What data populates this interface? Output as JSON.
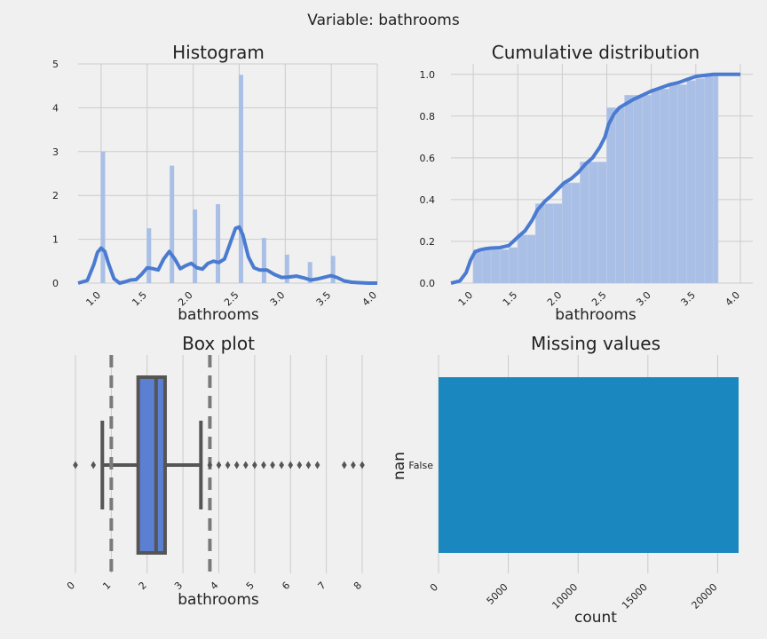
{
  "figure": {
    "suptitle": "Variable: bathrooms"
  },
  "chart_data": [
    {
      "type": "bar",
      "title": "Histogram",
      "xlabel": "bathrooms",
      "ylabel": "",
      "xlim": [
        0.75,
        4.0
      ],
      "ylim": [
        0,
        5
      ],
      "xticks": [
        "1.0",
        "1.5",
        "2.0",
        "2.5",
        "3.0",
        "3.5",
        "4.0"
      ],
      "yticks": [
        "0",
        "1",
        "2",
        "3",
        "4",
        "5"
      ],
      "grid": true,
      "bins": [
        {
          "x": 1.0,
          "value": 3.0
        },
        {
          "x": 1.5,
          "value": 1.25
        },
        {
          "x": 1.75,
          "value": 2.68
        },
        {
          "x": 2.0,
          "value": 1.68
        },
        {
          "x": 2.25,
          "value": 1.8
        },
        {
          "x": 2.5,
          "value": 4.75
        },
        {
          "x": 2.75,
          "value": 1.03
        },
        {
          "x": 3.0,
          "value": 0.65
        },
        {
          "x": 3.25,
          "value": 0.48
        },
        {
          "x": 3.5,
          "value": 0.62
        }
      ],
      "kde": {
        "x": [
          0.75,
          0.85,
          0.92,
          0.96,
          1.0,
          1.04,
          1.08,
          1.14,
          1.2,
          1.26,
          1.32,
          1.38,
          1.44,
          1.5,
          1.56,
          1.62,
          1.68,
          1.74,
          1.8,
          1.86,
          1.92,
          1.98,
          2.04,
          2.1,
          2.16,
          2.22,
          2.28,
          2.34,
          2.4,
          2.46,
          2.5,
          2.54,
          2.6,
          2.66,
          2.72,
          2.8,
          2.88,
          2.96,
          3.04,
          3.12,
          3.2,
          3.28,
          3.36,
          3.44,
          3.5,
          3.56,
          3.64,
          3.72,
          3.8,
          3.9,
          4.0
        ],
        "y": [
          0.0,
          0.06,
          0.42,
          0.7,
          0.8,
          0.72,
          0.45,
          0.1,
          0.0,
          0.03,
          0.07,
          0.08,
          0.2,
          0.35,
          0.33,
          0.3,
          0.55,
          0.72,
          0.55,
          0.33,
          0.4,
          0.45,
          0.35,
          0.32,
          0.45,
          0.5,
          0.47,
          0.55,
          0.9,
          1.25,
          1.28,
          1.1,
          0.6,
          0.35,
          0.3,
          0.3,
          0.2,
          0.13,
          0.14,
          0.16,
          0.12,
          0.07,
          0.1,
          0.14,
          0.17,
          0.13,
          0.05,
          0.02,
          0.01,
          0.0,
          0.0
        ]
      }
    },
    {
      "type": "bar",
      "title": "Cumulative distribution",
      "xlabel": "bathrooms",
      "ylabel": "",
      "xlim": [
        0.75,
        4.0
      ],
      "ylim": [
        0,
        1.05
      ],
      "xticks": [
        "1.0",
        "1.5",
        "2.0",
        "2.5",
        "3.0",
        "3.5",
        "4.0"
      ],
      "yticks": [
        "0.0",
        "0.2",
        "0.4",
        "0.6",
        "0.8",
        "1.0"
      ],
      "grid": true,
      "bin_edges": [
        1.0,
        1.1,
        1.2,
        1.3,
        1.4,
        1.5,
        1.6,
        1.7,
        1.8,
        1.9,
        2.0,
        2.1,
        2.2,
        2.3,
        2.4,
        2.5,
        2.6,
        2.7,
        2.8,
        2.9,
        3.0,
        3.1,
        3.2,
        3.3,
        3.4,
        3.5,
        3.6,
        3.7,
        3.75
      ],
      "values": [
        0.16,
        0.16,
        0.16,
        0.16,
        0.17,
        0.23,
        0.23,
        0.38,
        0.38,
        0.38,
        0.48,
        0.48,
        0.58,
        0.58,
        0.58,
        0.84,
        0.84,
        0.9,
        0.9,
        0.9,
        0.93,
        0.93,
        0.95,
        0.95,
        0.97,
        0.98,
        1.0,
        1.0
      ],
      "cdf": {
        "x": [
          0.75,
          0.85,
          0.92,
          0.97,
          1.02,
          1.08,
          1.14,
          1.2,
          1.3,
          1.4,
          1.45,
          1.5,
          1.58,
          1.66,
          1.72,
          1.8,
          1.88,
          1.95,
          2.02,
          2.1,
          2.18,
          2.26,
          2.34,
          2.42,
          2.48,
          2.52,
          2.58,
          2.64,
          2.72,
          2.8,
          2.9,
          3.0,
          3.1,
          3.2,
          3.3,
          3.4,
          3.5,
          3.6,
          3.7,
          3.8,
          3.9,
          4.0
        ],
        "y": [
          0.0,
          0.01,
          0.05,
          0.11,
          0.15,
          0.16,
          0.165,
          0.168,
          0.17,
          0.18,
          0.2,
          0.22,
          0.25,
          0.3,
          0.35,
          0.39,
          0.42,
          0.45,
          0.48,
          0.5,
          0.53,
          0.57,
          0.6,
          0.65,
          0.7,
          0.76,
          0.81,
          0.84,
          0.86,
          0.88,
          0.9,
          0.92,
          0.935,
          0.95,
          0.96,
          0.975,
          0.99,
          0.995,
          1.0,
          1.0,
          1.0,
          1.0
        ]
      }
    },
    {
      "type": "box",
      "title": "Box plot",
      "xlabel": "bathrooms",
      "xlim": [
        0,
        8
      ],
      "xticks": [
        "0",
        "1",
        "2",
        "3",
        "4",
        "5",
        "6",
        "7",
        "8"
      ],
      "grid": true,
      "box": {
        "q1": 1.75,
        "median": 2.25,
        "q3": 2.5,
        "whisker_low": 0.75,
        "whisker_high": 3.5
      },
      "reference_lines": [
        1.0,
        3.75
      ],
      "outliers": [
        0.0,
        0.5,
        3.75,
        4.0,
        4.25,
        4.5,
        4.75,
        5.0,
        5.25,
        5.5,
        5.75,
        6.0,
        6.25,
        6.5,
        6.75,
        7.5,
        7.75,
        8.0
      ]
    },
    {
      "type": "bar",
      "orientation": "horizontal",
      "title": "Missing values",
      "xlabel": "count",
      "ylabel": "nan",
      "xlim": [
        0,
        21500
      ],
      "xticks": [
        "0",
        "5000",
        "10000",
        "15000",
        "20000"
      ],
      "categories": [
        "False"
      ],
      "values": [
        21613
      ],
      "color": "#1a88bf"
    }
  ]
}
